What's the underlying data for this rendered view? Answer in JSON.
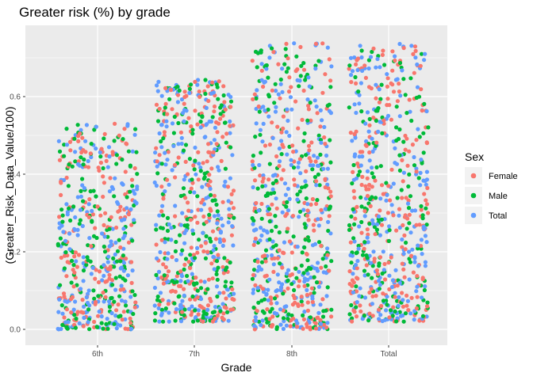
{
  "chart_data": {
    "type": "scatter",
    "title": "Greater risk (%) by grade",
    "xlabel": "Grade",
    "ylabel": "(Greater_Risk_Data_Value/100)",
    "categories": [
      "6th",
      "7th",
      "8th",
      "Total"
    ],
    "y_ticks": [
      "0.0",
      "0.2",
      "0.4",
      "0.6"
    ],
    "ylim": [
      -0.02,
      0.76
    ],
    "jitter": "horizontal jitter within each grade",
    "legend": {
      "title": "Sex",
      "placement": "right",
      "entries": [
        "Female",
        "Male",
        "Total"
      ]
    },
    "series": [
      {
        "name": "Female",
        "color": "#F8766D"
      },
      {
        "name": "Male",
        "color": "#00BA38"
      },
      {
        "name": "Total",
        "color": "#619CFF"
      }
    ],
    "category_value_ranges": [
      {
        "category": "6th",
        "min": 0.0,
        "max": 0.53
      },
      {
        "category": "7th",
        "min": 0.02,
        "max": 0.65
      },
      {
        "category": "8th",
        "min": 0.0,
        "max": 0.74
      },
      {
        "category": "Total",
        "min": 0.02,
        "max": 0.74
      }
    ],
    "grid": true,
    "panel_background": "#EBEBEB"
  }
}
